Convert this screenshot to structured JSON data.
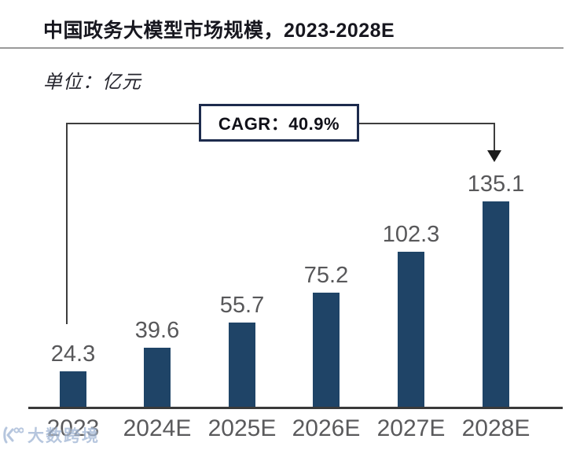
{
  "header": {
    "title": "中国政务大模型市场规模，2023-2028E",
    "unit_label": "单位：亿元"
  },
  "annotation": {
    "cagr_label": "CAGR：40.9%"
  },
  "watermark": {
    "text": "大数跨境"
  },
  "colors": {
    "bar": "#1f4467",
    "value_label": "#58585a",
    "category_label": "#5a5a5c",
    "axis": "#3a3a3a",
    "cagr_border": "#1d2b4d",
    "watermark": "#9eb4d3"
  },
  "chart_data": {
    "type": "bar",
    "title": "中国政务大模型市场规模，2023-2028E",
    "unit": "亿元",
    "categories": [
      "2023",
      "2024E",
      "2025E",
      "2026E",
      "2027E",
      "2028E"
    ],
    "values": [
      24.3,
      39.6,
      55.7,
      75.2,
      102.3,
      135.1
    ],
    "cagr_percent": 40.9,
    "annotation": "CAGR：40.9%",
    "xlabel": "",
    "ylabel": "单位：亿元",
    "ylim": [
      0,
      150
    ],
    "grid": false,
    "legend": false,
    "bar_color": "#1f4467",
    "value_labels_shown": true
  }
}
